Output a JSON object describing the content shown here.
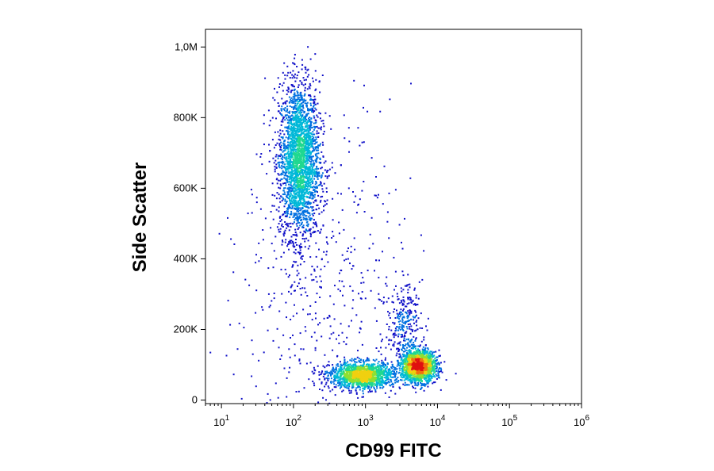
{
  "chart_data": {
    "type": "scatter",
    "plot_style": "density-colored flow cytometry dot plot",
    "xlabel": "CD99 FITC",
    "ylabel": "Side Scatter",
    "x_scale": "log",
    "xlim": [
      6,
      1000000
    ],
    "ylim": [
      -10000,
      1050000
    ],
    "x_ticks": [
      {
        "value": 10,
        "base": "10",
        "exp": "1"
      },
      {
        "value": 100,
        "base": "10",
        "exp": "2"
      },
      {
        "value": 1000,
        "base": "10",
        "exp": "3"
      },
      {
        "value": 10000,
        "base": "10",
        "exp": "4"
      },
      {
        "value": 100000,
        "base": "10",
        "exp": "5"
      },
      {
        "value": 1000000,
        "base": "10",
        "exp": "6"
      }
    ],
    "y_ticks": [
      {
        "value": 0,
        "label": "0"
      },
      {
        "value": 200000,
        "label": "200K"
      },
      {
        "value": 400000,
        "label": "400K"
      },
      {
        "value": 600000,
        "label": "600K"
      },
      {
        "value": 800000,
        "label": "800K"
      },
      {
        "value": 1000000,
        "label": "1,0M"
      }
    ],
    "grid": false,
    "density_colors": [
      "#1010c8",
      "#0070e0",
      "#00b8d8",
      "#20d890",
      "#90e030",
      "#f0d010",
      "#f07010",
      "#e01010"
    ],
    "populations": [
      {
        "x_center": 120,
        "x_spread_log10": 0.14,
        "y_center": 680000,
        "y_spread": 110000,
        "count": 2600
      },
      {
        "x_center": 5500,
        "x_spread_log10": 0.12,
        "y_center": 95000,
        "y_spread": 22000,
        "count": 1700
      },
      {
        "x_center": 900,
        "x_spread_log10": 0.22,
        "y_center": 70000,
        "y_spread": 18000,
        "count": 1600
      },
      {
        "x_center": 3500,
        "x_spread_log10": 0.12,
        "y_center": 210000,
        "y_spread": 60000,
        "count": 300
      },
      {
        "x_center": 300,
        "x_spread_log10": 0.6,
        "y_center": 300000,
        "y_spread": 250000,
        "count": 500
      }
    ]
  }
}
